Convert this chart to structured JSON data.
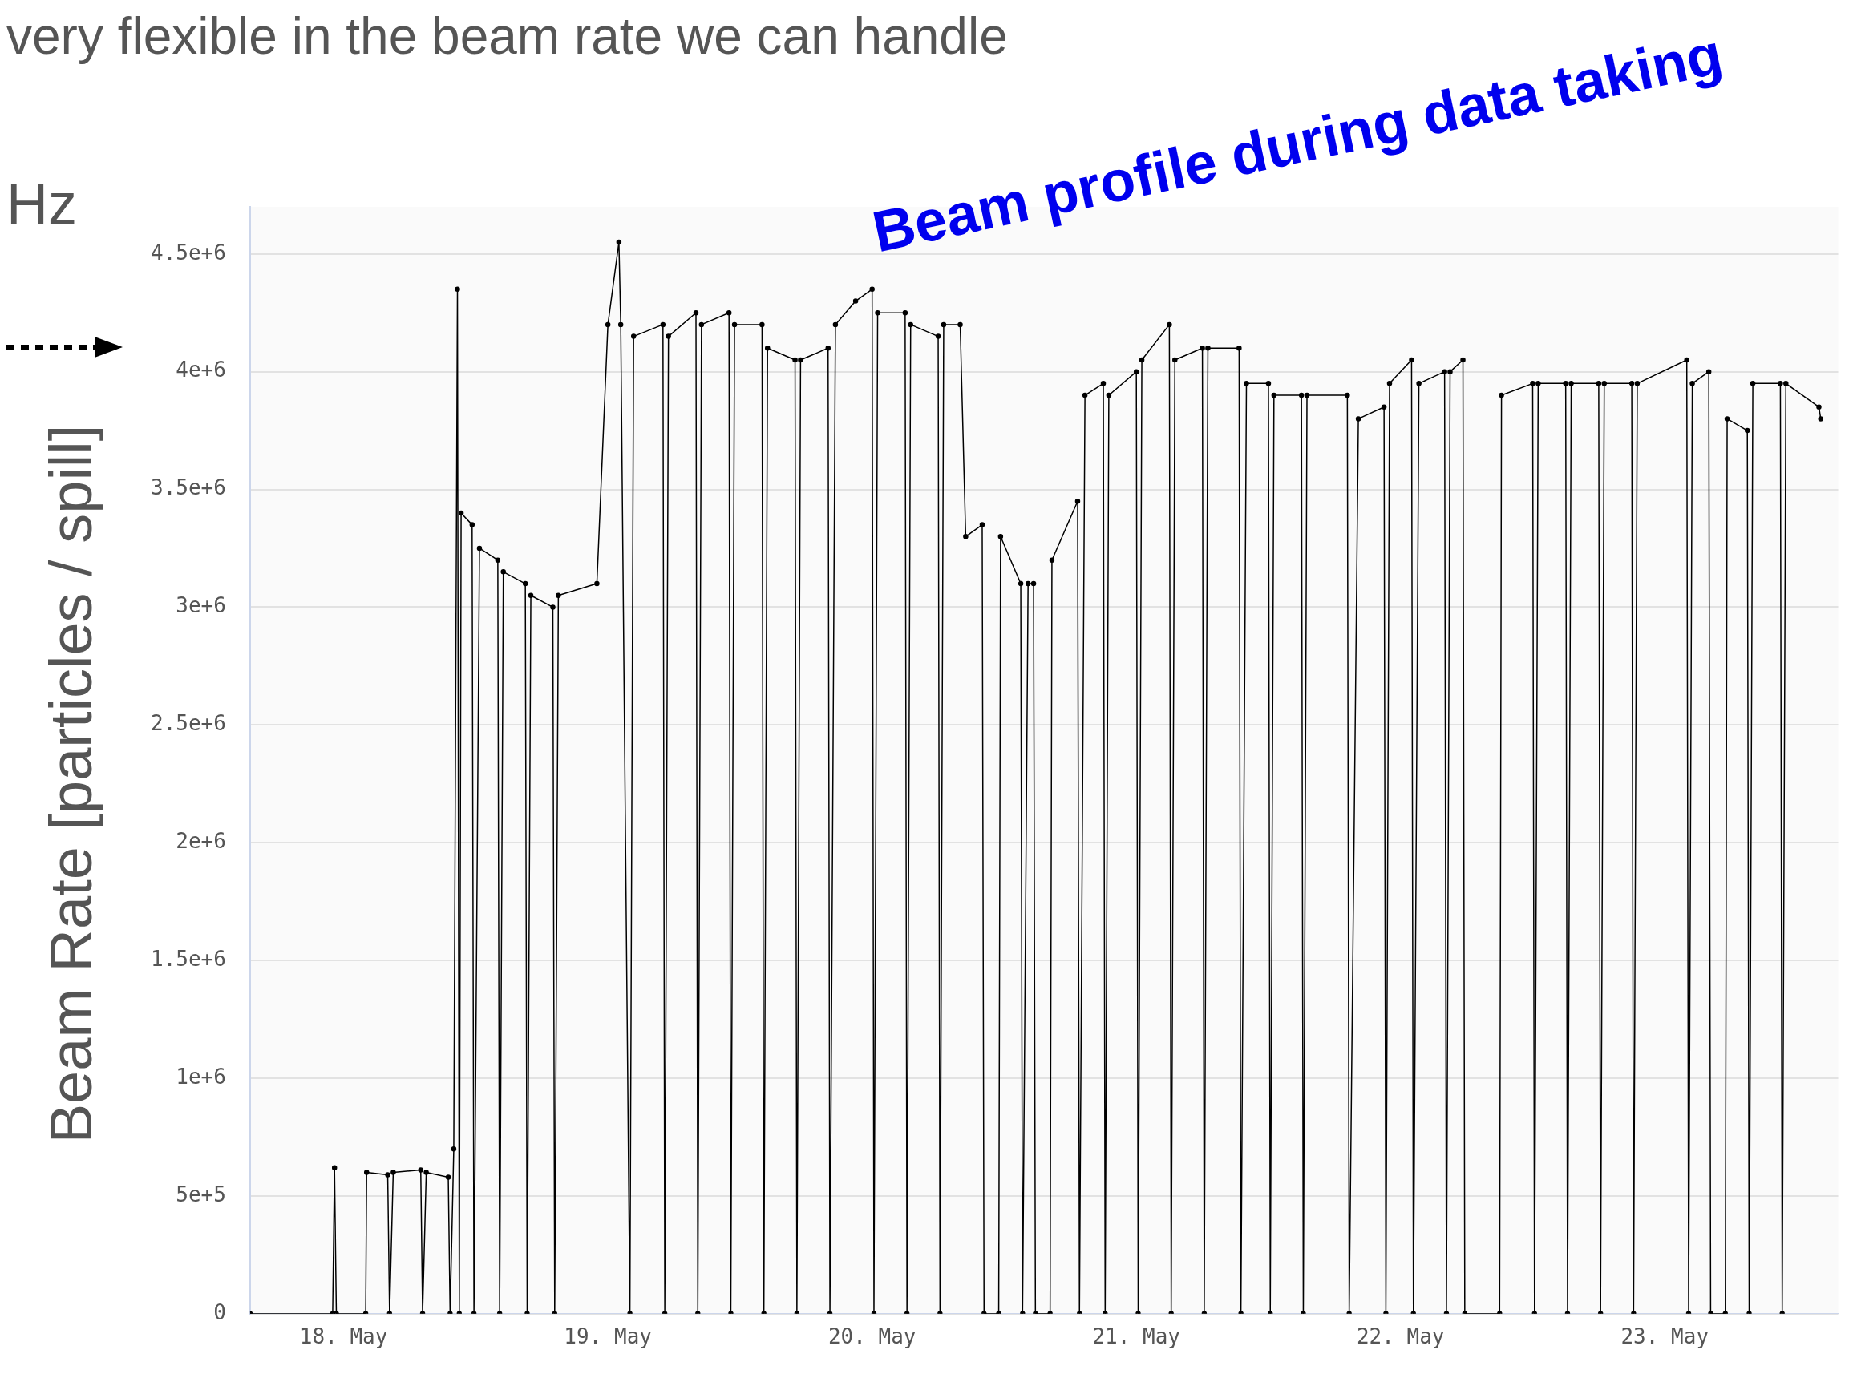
{
  "chart_data": {
    "type": "line",
    "title": "Beam profile during data taking",
    "ylabel": "Beam Rate [particles / spill]",
    "annotations": [
      "very flexible in the beam rate we can handle",
      "Hz"
    ],
    "color": "#000000",
    "marker": "circle",
    "grid": "y",
    "legend": false,
    "xlim": [
      "--05-17T15:30",
      "--05-23T15:45"
    ],
    "xticks": [
      {
        "value": "--05-18",
        "label": "18. May"
      },
      {
        "value": "--05-19",
        "label": "19. May"
      },
      {
        "value": "--05-20",
        "label": "20. May"
      },
      {
        "value": "--05-21",
        "label": "21. May"
      },
      {
        "value": "--05-22",
        "label": "22. May"
      },
      {
        "value": "--05-23",
        "label": "23. May"
      }
    ],
    "ylim": [
      0,
      4700000
    ],
    "yticks": [
      0,
      {
        "value": 500000,
        "label": "5e+5"
      },
      {
        "value": 1000000,
        "label": "1e+6"
      },
      {
        "value": 1500000,
        "label": "1.5e+6"
      },
      {
        "value": 2000000,
        "label": "2e+6"
      },
      {
        "value": 2500000,
        "label": "2.5e+6"
      },
      {
        "value": 3000000,
        "label": "3e+6"
      },
      {
        "value": 3500000,
        "label": "3.5e+6"
      },
      {
        "value": 4000000,
        "label": "4e+6"
      },
      {
        "value": 4500000,
        "label": "4.5e+6"
      }
    ],
    "x": [
      "--05-17T15:30",
      "--05-17T23:00",
      "--05-17T23:10",
      "--05-17T23:20",
      "--05-18T02:00",
      "--05-18T02:05",
      "--05-18T04:00",
      "--05-18T04:10",
      "--05-18T04:30",
      "--05-18T07:00",
      "--05-18T07:10",
      "--05-18T07:30",
      "--05-18T09:30",
      "--05-18T09:40",
      "--05-18T10:00",
      "--05-18T10:20",
      "--05-18T10:30",
      "--05-18T10:40",
      "--05-18T11:40",
      "--05-18T11:50",
      "--05-18T12:20",
      "--05-18T14:00",
      "--05-18T14:10",
      "--05-18T14:30",
      "--05-18T16:30",
      "--05-18T16:40",
      "--05-18T17:00",
      "--05-18T19:00",
      "--05-18T19:10",
      "--05-18T19:30",
      "--05-18T23:00",
      "--05-19T00:00",
      "--05-19T01:00",
      "--05-19T01:10",
      "--05-19T02:00",
      "--05-19T02:20",
      "--05-19T05:00",
      "--05-19T05:10",
      "--05-19T05:30",
      "--05-19T08:00",
      "--05-19T08:10",
      "--05-19T08:30",
      "--05-19T11:00",
      "--05-19T11:10",
      "--05-19T11:30",
      "--05-19T14:00",
      "--05-19T14:10",
      "--05-19T14:30",
      "--05-19T17:00",
      "--05-19T17:10",
      "--05-19T17:30",
      "--05-19T20:00",
      "--05-19T20:10",
      "--05-19T20:40",
      "--05-19T22:30",
      "--05-20T00:00",
      "--05-20T00:10",
      "--05-20T00:30",
      "--05-20T03:00",
      "--05-20T03:10",
      "--05-20T03:30",
      "--05-20T06:00",
      "--05-20T06:10",
      "--05-20T06:30",
      "--05-20T08:00",
      "--05-20T08:30",
      "--05-20T10:00",
      "--05-20T10:10",
      "--05-20T11:30",
      "--05-20T11:40",
      "--05-20T13:30",
      "--05-20T13:40",
      "--05-20T14:10",
      "--05-20T14:40",
      "--05-20T14:50",
      "--05-20T16:10",
      "--05-20T16:20",
      "--05-20T18:40",
      "--05-20T18:50",
      "--05-20T19:20",
      "--05-20T21:00",
      "--05-20T21:10",
      "--05-20T21:30",
      "--05-21T00:00",
      "--05-21T00:10",
      "--05-21T00:30",
      "--05-21T03:00",
      "--05-21T03:10",
      "--05-21T03:30",
      "--05-21T06:00",
      "--05-21T06:10",
      "--05-21T06:30",
      "--05-21T09:20",
      "--05-21T09:30",
      "--05-21T10:00",
      "--05-21T12:00",
      "--05-21T12:10",
      "--05-21T12:30",
      "--05-21T15:00",
      "--05-21T15:10",
      "--05-21T15:30",
      "--05-21T19:10",
      "--05-21T19:20",
      "--05-21T20:10",
      "--05-21T22:30",
      "--05-21T22:40",
      "--05-21T23:00",
      "--05-22T01:00",
      "--05-22T01:10",
      "--05-22T01:40",
      "--05-22T04:00",
      "--05-22T04:10",
      "--05-22T04:30",
      "--05-22T05:40",
      "--05-22T05:50",
      "--05-22T09:00",
      "--05-22T09:10",
      "--05-22T12:00",
      "--05-22T12:10",
      "--05-22T12:30",
      "--05-22T15:00",
      "--05-22T15:10",
      "--05-22T15:30",
      "--05-22T18:00",
      "--05-22T18:10",
      "--05-22T18:30",
      "--05-22T21:00",
      "--05-22T21:10",
      "--05-22T21:30",
      "--05-23T02:00",
      "--05-23T02:10",
      "--05-23T02:30",
      "--05-23T04:00",
      "--05-23T04:10",
      "--05-23T05:30",
      "--05-23T05:40",
      "--05-23T07:30",
      "--05-23T07:40",
      "--05-23T08:00",
      "--05-23T10:30",
      "--05-23T10:40",
      "--05-23T11:00",
      "--05-23T14:00",
      "--05-23T14:10"
    ],
    "values": [
      0,
      0,
      620000,
      0,
      0,
      600000,
      590000,
      0,
      600000,
      610000,
      0,
      600000,
      580000,
      0,
      700000,
      4350000,
      0,
      3400000,
      3350000,
      0,
      3250000,
      3200000,
      0,
      3150000,
      3100000,
      0,
      3050000,
      3000000,
      0,
      3050000,
      3100000,
      4200000,
      4550000,
      4200000,
      0,
      4150000,
      4200000,
      0,
      4150000,
      4250000,
      0,
      4200000,
      4250000,
      0,
      4200000,
      4200000,
      0,
      4100000,
      4050000,
      0,
      4050000,
      4100000,
      0,
      4200000,
      4300000,
      4350000,
      0,
      4250000,
      4250000,
      0,
      4200000,
      4150000,
      0,
      4200000,
      4200000,
      3300000,
      3350000,
      0,
      0,
      3300000,
      3100000,
      0,
      3100000,
      3100000,
      0,
      0,
      3200000,
      3450000,
      0,
      3900000,
      3950000,
      0,
      3900000,
      4000000,
      0,
      4050000,
      4200000,
      0,
      4050000,
      4100000,
      0,
      4100000,
      4100000,
      0,
      3950000,
      3950000,
      0,
      3900000,
      3900000,
      0,
      3900000,
      3900000,
      0,
      3800000,
      3850000,
      0,
      3950000,
      4050000,
      0,
      3950000,
      4000000,
      0,
      4000000,
      4050000,
      0,
      0,
      3900000,
      3950000,
      0,
      3950000,
      3950000,
      0,
      3950000,
      3950000,
      0,
      3950000,
      3950000,
      0,
      3950000,
      4050000,
      0,
      3950000,
      4000000,
      0,
      0,
      3800000,
      3750000,
      0,
      3950000,
      3950000,
      0,
      3950000,
      3850000,
      3800000
    ]
  }
}
